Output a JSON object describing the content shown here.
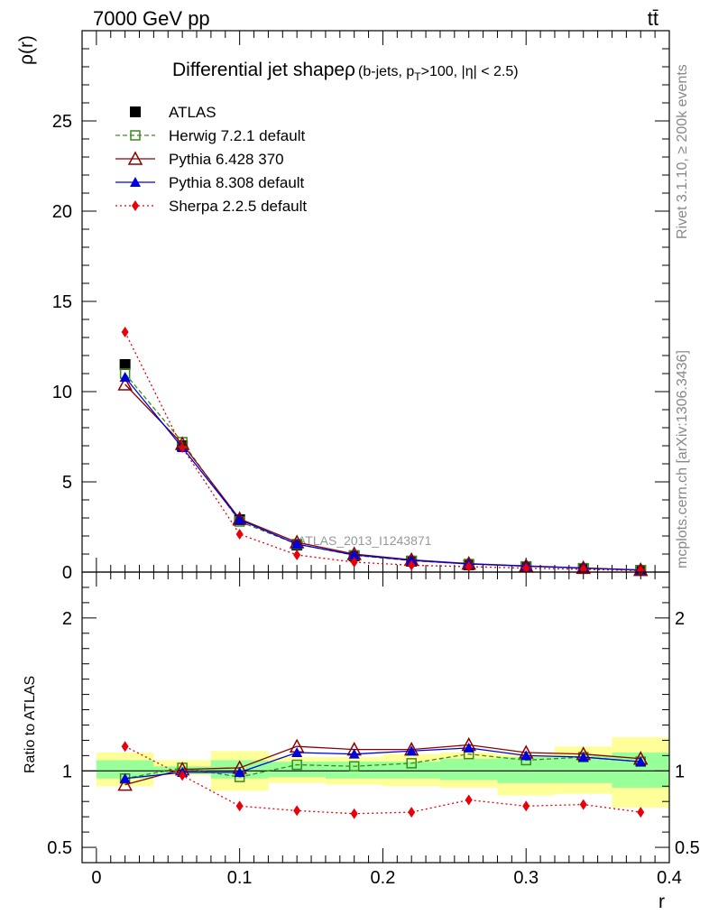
{
  "header": {
    "left": "7000 GeV pp",
    "right": "tt̄"
  },
  "side": {
    "rivet": "Rivet 3.1.10, ≥ 200k events",
    "mcplots": "mcplots.cern.ch [arXiv:1306.3436]"
  },
  "chart_data": [
    {
      "type": "line",
      "title_main": "Differential jet shapeρ",
      "title_sub": "(b-jets, p",
      "title_sub_sub": "T",
      "title_sub_end": ">100, |η| < 2.5)",
      "ylabel": "ρ(r)",
      "xlabel": "r",
      "xlim": [
        -0.01,
        0.4
      ],
      "ylim": [
        0,
        30
      ],
      "x_ticks": [
        "0",
        "0.1",
        "0.2",
        "0.3",
        "0.4"
      ],
      "y_ticks": [
        "0",
        "5",
        "10",
        "15",
        "20",
        "25"
      ],
      "watermark": "ATLAS_2013_I1243871",
      "x": [
        0.02,
        0.06,
        0.1,
        0.14,
        0.18,
        0.22,
        0.26,
        0.3,
        0.34,
        0.38
      ],
      "series": [
        {
          "name": "ATLAS",
          "color": "#000000",
          "marker": "square-filled",
          "values": [
            11.5,
            7.0,
            2.9,
            1.5,
            0.9,
            0.6,
            0.4,
            0.3,
            0.2,
            0.1
          ]
        },
        {
          "name": "Herwig 7.2.1 default",
          "color": "#3a8a1e",
          "marker": "square-open",
          "dash": "dashed",
          "values": [
            11.0,
            7.2,
            2.8,
            1.55,
            0.93,
            0.63,
            0.45,
            0.32,
            0.22,
            0.11
          ]
        },
        {
          "name": "Pythia 6.428 370",
          "color": "#8b0000",
          "marker": "triangle-open",
          "values": [
            10.4,
            7.1,
            2.95,
            1.65,
            1.0,
            0.68,
            0.47,
            0.34,
            0.23,
            0.12
          ]
        },
        {
          "name": "Pythia 8.308 default",
          "color": "#0000dd",
          "marker": "triangle-filled",
          "values": [
            10.8,
            6.9,
            2.9,
            1.55,
            0.95,
            0.65,
            0.45,
            0.33,
            0.22,
            0.11
          ]
        },
        {
          "name": "Sherpa 2.2.5 default",
          "color": "#e8000b",
          "marker": "diamond-filled",
          "dash": "dotted",
          "values": [
            13.3,
            6.9,
            2.1,
            0.95,
            0.55,
            0.38,
            0.3,
            0.22,
            0.15,
            0.08
          ]
        }
      ]
    },
    {
      "type": "line",
      "ylabel": "Ratio to ATLAS",
      "xlabel": "r",
      "xlim": [
        -0.01,
        0.4
      ],
      "ylim": [
        0.4,
        2.3
      ],
      "y_ticks": [
        "0.5",
        "1",
        "2"
      ],
      "x_ticks": [
        "0",
        "0.1",
        "0.2",
        "0.3",
        "0.4"
      ],
      "bins": [
        [
          0.0,
          0.04
        ],
        [
          0.04,
          0.08
        ],
        [
          0.08,
          0.12
        ],
        [
          0.12,
          0.16
        ],
        [
          0.16,
          0.2
        ],
        [
          0.2,
          0.24
        ],
        [
          0.24,
          0.28
        ],
        [
          0.28,
          0.32
        ],
        [
          0.32,
          0.36
        ],
        [
          0.36,
          0.4
        ]
      ],
      "band_stat": [
        [
          0.95,
          1.07
        ],
        [
          0.98,
          1.03
        ],
        [
          0.95,
          1.07
        ],
        [
          0.96,
          1.06
        ],
        [
          0.95,
          1.06
        ],
        [
          0.95,
          1.06
        ],
        [
          0.94,
          1.08
        ],
        [
          0.92,
          1.09
        ],
        [
          0.92,
          1.1
        ],
        [
          0.89,
          1.12
        ]
      ],
      "band_total": [
        [
          0.9,
          1.12
        ],
        [
          0.97,
          1.07
        ],
        [
          0.87,
          1.13
        ],
        [
          0.92,
          1.09
        ],
        [
          0.91,
          1.09
        ],
        [
          0.9,
          1.11
        ],
        [
          0.89,
          1.12
        ],
        [
          0.84,
          1.11
        ],
        [
          0.85,
          1.16
        ],
        [
          0.76,
          1.22
        ]
      ],
      "band_stat_color": "#99ff99",
      "band_total_color": "#ffff99",
      "x": [
        0.02,
        0.06,
        0.1,
        0.14,
        0.18,
        0.22,
        0.26,
        0.3,
        0.34,
        0.38
      ],
      "series": [
        {
          "name": "Herwig 7.2.1 default",
          "color": "#3a8a1e",
          "marker": "square-open",
          "dash": "dashed",
          "values": [
            0.95,
            1.02,
            0.96,
            1.04,
            1.03,
            1.05,
            1.11,
            1.07,
            1.09,
            1.06
          ]
        },
        {
          "name": "Pythia 6.428 370",
          "color": "#8b0000",
          "marker": "triangle-open",
          "values": [
            0.91,
            1.01,
            1.02,
            1.16,
            1.14,
            1.14,
            1.17,
            1.12,
            1.11,
            1.08
          ]
        },
        {
          "name": "Pythia 8.308 default",
          "color": "#0000dd",
          "marker": "triangle-filled",
          "values": [
            0.95,
            0.99,
            0.99,
            1.12,
            1.11,
            1.13,
            1.15,
            1.1,
            1.09,
            1.06
          ]
        },
        {
          "name": "Sherpa 2.2.5 default",
          "color": "#e8000b",
          "marker": "diamond-filled",
          "dash": "dotted",
          "values": [
            1.16,
            0.97,
            0.77,
            0.74,
            0.72,
            0.73,
            0.81,
            0.77,
            0.78,
            0.73
          ]
        }
      ]
    }
  ]
}
